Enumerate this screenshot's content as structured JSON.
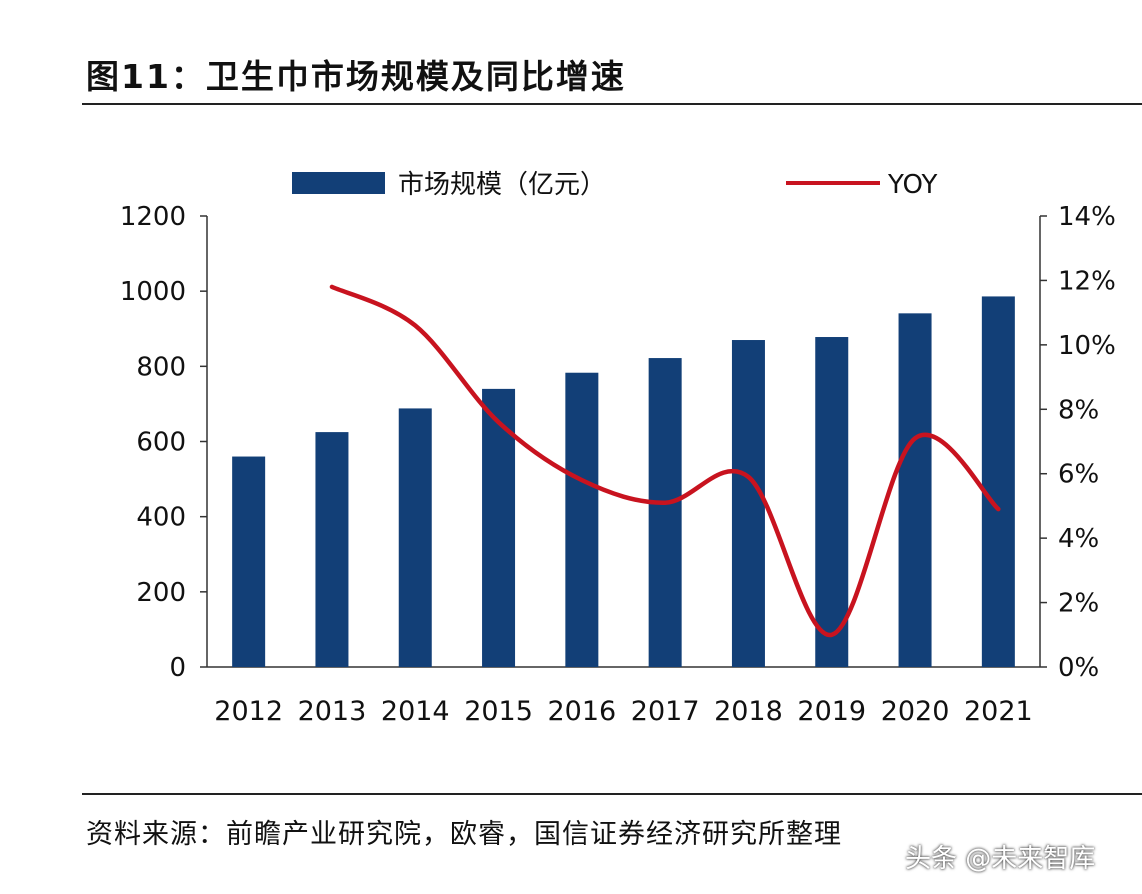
{
  "figure_title": "图11：卫生巾市场规模及同比增速",
  "source_note": "资料来源：前瞻产业研究院，欧睿，国信证券经济研究所整理",
  "watermark": "头条 @未来智库",
  "chart_data": {
    "type": "bar",
    "categories": [
      "2012",
      "2013",
      "2014",
      "2015",
      "2016",
      "2017",
      "2018",
      "2019",
      "2020",
      "2021"
    ],
    "series": [
      {
        "name": "市场规模（亿元）",
        "type": "bar",
        "axis": "left",
        "color": "#123f77",
        "values": [
          560,
          625,
          688,
          740,
          783,
          822,
          870,
          878,
          941,
          986
        ]
      },
      {
        "name": "YOY",
        "type": "line",
        "axis": "right",
        "color": "#c8131f",
        "values": [
          null,
          11.8,
          10.6,
          7.6,
          5.8,
          5.1,
          5.9,
          1.0,
          7.1,
          4.9
        ]
      }
    ],
    "y_left": {
      "min": 0,
      "max": 1200,
      "ticks": [
        "0",
        "200",
        "400",
        "600",
        "800",
        "1000",
        "1200"
      ]
    },
    "y_right": {
      "min": 0,
      "max": 14,
      "ticks": [
        "0%",
        "2%",
        "4%",
        "6%",
        "8%",
        "10%",
        "12%",
        "14%"
      ]
    },
    "legend_position": "top",
    "grid": false
  }
}
